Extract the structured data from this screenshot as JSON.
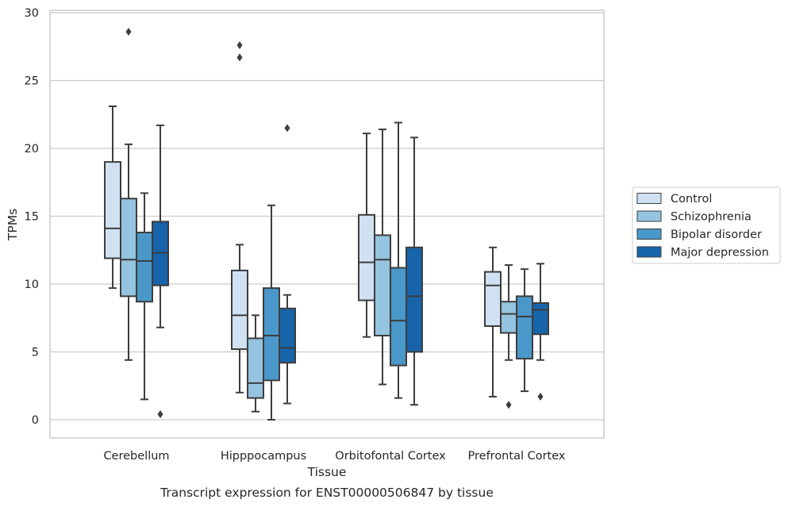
{
  "chart_data": {
    "type": "box",
    "title": "",
    "caption": "Transcript expression for ENST00000506847 by tissue",
    "xlabel": "Tissue",
    "ylabel": "TPMs",
    "ylim": [
      -1.4,
      30.1
    ],
    "yticks": [
      0,
      5,
      10,
      15,
      20,
      25,
      30
    ],
    "grid": "horizontal",
    "legend_position": "right",
    "categories": [
      "Cerebellum",
      "Hipppocampus",
      "Orbitofontal Cortex",
      "Prefrontal Cortex"
    ],
    "series": [
      {
        "name": "Control",
        "color": "#d0e1f2",
        "boxes": [
          {
            "whisker_low": 9.7,
            "q1": 11.9,
            "median": 14.1,
            "q3": 19.0,
            "whisker_high": 23.1,
            "outliers": []
          },
          {
            "whisker_low": 2.0,
            "q1": 5.2,
            "median": 7.7,
            "q3": 11.0,
            "whisker_high": 12.9,
            "outliers": [
              27.6,
              26.7
            ]
          },
          {
            "whisker_low": 6.1,
            "q1": 8.8,
            "median": 11.6,
            "q3": 15.1,
            "whisker_high": 21.1,
            "outliers": []
          },
          {
            "whisker_low": 1.7,
            "q1": 6.9,
            "median": 9.9,
            "q3": 10.9,
            "whisker_high": 12.7,
            "outliers": []
          }
        ]
      },
      {
        "name": "Schizophrenia",
        "color": "#94c4df",
        "boxes": [
          {
            "whisker_low": 4.4,
            "q1": 9.1,
            "median": 11.8,
            "q3": 16.3,
            "whisker_high": 20.3,
            "outliers": [
              28.6
            ]
          },
          {
            "whisker_low": 0.6,
            "q1": 1.6,
            "median": 2.7,
            "q3": 6.0,
            "whisker_high": 7.7,
            "outliers": []
          },
          {
            "whisker_low": 2.6,
            "q1": 6.2,
            "median": 11.8,
            "q3": 13.6,
            "whisker_high": 21.4,
            "outliers": []
          },
          {
            "whisker_low": 4.4,
            "q1": 6.4,
            "median": 7.8,
            "q3": 8.7,
            "whisker_high": 11.4,
            "outliers": [
              1.1
            ]
          }
        ]
      },
      {
        "name": "Bipolar disorder",
        "color": "#4a98c9",
        "boxes": [
          {
            "whisker_low": 1.5,
            "q1": 8.7,
            "median": 11.7,
            "q3": 13.8,
            "whisker_high": 16.7,
            "outliers": []
          },
          {
            "whisker_low": 0.0,
            "q1": 2.9,
            "median": 6.2,
            "q3": 9.7,
            "whisker_high": 15.8,
            "outliers": []
          },
          {
            "whisker_low": 1.6,
            "q1": 4.0,
            "median": 7.3,
            "q3": 11.2,
            "whisker_high": 21.9,
            "outliers": []
          },
          {
            "whisker_low": 2.1,
            "q1": 4.5,
            "median": 7.6,
            "q3": 9.1,
            "whisker_high": 11.1,
            "outliers": []
          }
        ]
      },
      {
        "name": "Major depression",
        "color": "#1764ab",
        "boxes": [
          {
            "whisker_low": 6.8,
            "q1": 9.9,
            "median": 12.3,
            "q3": 14.6,
            "whisker_high": 21.7,
            "outliers": [
              0.4
            ]
          },
          {
            "whisker_low": 1.2,
            "q1": 4.2,
            "median": 5.3,
            "q3": 8.2,
            "whisker_high": 9.2,
            "outliers": [
              21.5
            ]
          },
          {
            "whisker_low": 1.1,
            "q1": 5.0,
            "median": 9.1,
            "q3": 12.7,
            "whisker_high": 20.8,
            "outliers": []
          },
          {
            "whisker_low": 4.4,
            "q1": 6.3,
            "median": 8.1,
            "q3": 8.6,
            "whisker_high": 11.5,
            "outliers": [
              1.7
            ]
          }
        ]
      }
    ]
  },
  "style": {
    "grid_color": "#cccccc",
    "frame_color": "#cccccc",
    "line_color": "#3d3d3d"
  }
}
